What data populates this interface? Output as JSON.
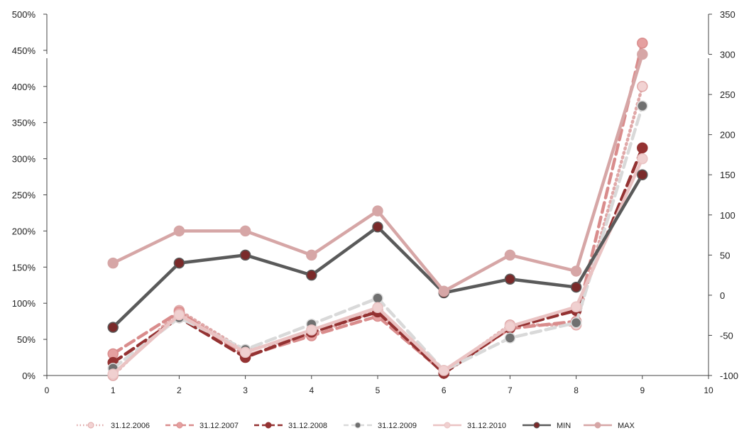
{
  "chart_data": {
    "type": "line",
    "x_ticks": [
      0,
      1,
      2,
      3,
      4,
      5,
      6,
      7,
      8,
      9,
      10
    ],
    "xlim": [
      0,
      10
    ],
    "y_left": {
      "ticks": [
        "0%",
        "50%",
        "100%",
        "150%",
        "200%",
        "250%",
        "300%",
        "350%",
        "400%",
        "450%",
        "500%"
      ],
      "ylim": [
        0,
        500
      ],
      "axis_break": true
    },
    "y_right": {
      "ticks": [
        "-100",
        "-50",
        "0",
        "50",
        "100",
        "150",
        "200",
        "250",
        "300",
        "350"
      ],
      "ylim": [
        -100,
        350
      ],
      "axis_break": true
    },
    "grid": false,
    "legend_position": "bottom",
    "series": [
      {
        "name": "31.12.2006",
        "axis": "left",
        "color": "#e0a8a8",
        "style": "dotted",
        "marker_fill": "#f2d3d3",
        "x": [
          1,
          2,
          3,
          4,
          5,
          6,
          7,
          8,
          9
        ],
        "y": [
          0,
          90,
          34,
          57,
          90,
          5,
          70,
          70,
          400
        ]
      },
      {
        "name": "31.12.2007",
        "axis": "left",
        "color": "#d98c8c",
        "style": "dashed",
        "marker_fill": "#e5a0a0",
        "x": [
          1,
          2,
          3,
          4,
          5,
          6,
          7,
          8,
          9
        ],
        "y": [
          30,
          88,
          27,
          55,
          82,
          4,
          65,
          75,
          460
        ]
      },
      {
        "name": "31.12.2008",
        "axis": "left",
        "color": "#943232",
        "style": "dashed",
        "marker_fill": "#943232",
        "x": [
          1,
          2,
          3,
          4,
          5,
          6,
          7,
          8,
          9
        ],
        "y": [
          18,
          80,
          25,
          60,
          88,
          3,
          66,
          90,
          315
        ]
      },
      {
        "name": "31.12.2009",
        "axis": "left",
        "color": "#d9d9d9",
        "style": "dashed",
        "marker_fill": "#707070",
        "x": [
          1,
          2,
          3,
          4,
          5,
          6,
          7,
          8,
          9
        ],
        "y": [
          10,
          80,
          36,
          71,
          107,
          7,
          52,
          73,
          373
        ]
      },
      {
        "name": "31.12.2010",
        "axis": "left",
        "color": "#eac3c3",
        "style": "solid",
        "marker_fill": "#f0d0d0",
        "x": [
          1,
          2,
          3,
          4,
          5,
          6,
          7,
          8,
          9
        ],
        "y": [
          2,
          84,
          32,
          63,
          94,
          7,
          68,
          95,
          300
        ]
      },
      {
        "name": "MIN",
        "axis": "right",
        "color": "#5a5a5a",
        "style": "solid",
        "marker_fill": "#7a2a2a",
        "x": [
          1,
          2,
          3,
          4,
          5,
          6,
          7,
          8,
          9
        ],
        "y": [
          -40,
          40,
          50,
          25,
          85,
          3,
          20,
          10,
          150
        ]
      },
      {
        "name": "MAX",
        "axis": "right",
        "color": "#d6a6a6",
        "style": "solid",
        "marker_fill": "#d6a6a6",
        "x": [
          1,
          2,
          3,
          4,
          5,
          6,
          7,
          8,
          9
        ],
        "y": [
          40,
          80,
          80,
          50,
          105,
          5,
          50,
          30,
          300
        ]
      }
    ]
  }
}
